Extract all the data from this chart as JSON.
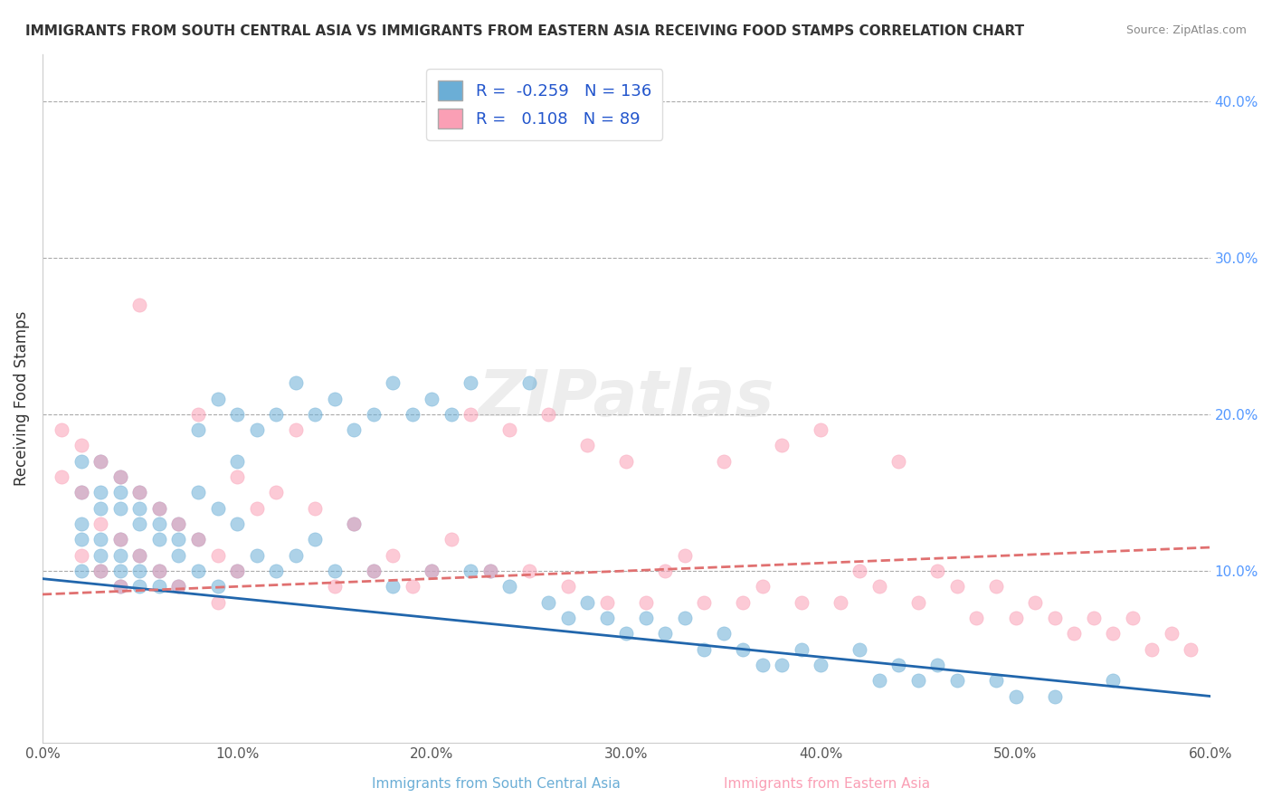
{
  "title": "IMMIGRANTS FROM SOUTH CENTRAL ASIA VS IMMIGRANTS FROM EASTERN ASIA RECEIVING FOOD STAMPS CORRELATION CHART",
  "source": "Source: ZipAtlas.com",
  "xlabel_blue": "Immigrants from South Central Asia",
  "xlabel_pink": "Immigrants from Eastern Asia",
  "ylabel": "Receiving Food Stamps",
  "xlim": [
    0,
    0.6
  ],
  "ylim": [
    -0.01,
    0.43
  ],
  "xticks": [
    0.0,
    0.1,
    0.2,
    0.3,
    0.4,
    0.5,
    0.6
  ],
  "xticklabels": [
    "0.0%",
    "10.0%",
    "20.0%",
    "30.0%",
    "40.0%",
    "50.0%",
    "60.0%"
  ],
  "yticks_right": [
    0.1,
    0.2,
    0.3,
    0.4
  ],
  "yticklabels_right": [
    "10.0%",
    "20.0%",
    "30.0%",
    "40.0%"
  ],
  "blue_color": "#6baed6",
  "pink_color": "#fa9fb5",
  "blue_line_color": "#2166ac",
  "pink_line_color": "#e07070",
  "R_blue": -0.259,
  "N_blue": 136,
  "R_pink": 0.108,
  "N_pink": 89,
  "watermark": "ZIPatlas",
  "blue_scatter_x": [
    0.02,
    0.02,
    0.02,
    0.02,
    0.02,
    0.03,
    0.03,
    0.03,
    0.03,
    0.03,
    0.03,
    0.04,
    0.04,
    0.04,
    0.04,
    0.04,
    0.04,
    0.04,
    0.05,
    0.05,
    0.05,
    0.05,
    0.05,
    0.05,
    0.06,
    0.06,
    0.06,
    0.06,
    0.06,
    0.07,
    0.07,
    0.07,
    0.07,
    0.08,
    0.08,
    0.08,
    0.08,
    0.09,
    0.09,
    0.09,
    0.1,
    0.1,
    0.1,
    0.1,
    0.11,
    0.11,
    0.12,
    0.12,
    0.13,
    0.13,
    0.14,
    0.14,
    0.15,
    0.15,
    0.16,
    0.16,
    0.17,
    0.17,
    0.18,
    0.18,
    0.19,
    0.2,
    0.2,
    0.21,
    0.22,
    0.22,
    0.23,
    0.24,
    0.25,
    0.26,
    0.27,
    0.28,
    0.29,
    0.3,
    0.31,
    0.32,
    0.33,
    0.34,
    0.35,
    0.36,
    0.37,
    0.38,
    0.39,
    0.4,
    0.42,
    0.43,
    0.44,
    0.45,
    0.46,
    0.47,
    0.49,
    0.5,
    0.52,
    0.55
  ],
  "blue_scatter_y": [
    0.17,
    0.15,
    0.13,
    0.12,
    0.1,
    0.17,
    0.15,
    0.14,
    0.12,
    0.11,
    0.1,
    0.16,
    0.15,
    0.14,
    0.12,
    0.11,
    0.1,
    0.09,
    0.15,
    0.14,
    0.13,
    0.11,
    0.1,
    0.09,
    0.14,
    0.13,
    0.12,
    0.1,
    0.09,
    0.13,
    0.12,
    0.11,
    0.09,
    0.19,
    0.15,
    0.12,
    0.1,
    0.21,
    0.14,
    0.09,
    0.2,
    0.17,
    0.13,
    0.1,
    0.19,
    0.11,
    0.2,
    0.1,
    0.22,
    0.11,
    0.2,
    0.12,
    0.21,
    0.1,
    0.19,
    0.13,
    0.2,
    0.1,
    0.22,
    0.09,
    0.2,
    0.21,
    0.1,
    0.2,
    0.1,
    0.22,
    0.1,
    0.09,
    0.22,
    0.08,
    0.07,
    0.08,
    0.07,
    0.06,
    0.07,
    0.06,
    0.07,
    0.05,
    0.06,
    0.05,
    0.04,
    0.04,
    0.05,
    0.04,
    0.05,
    0.03,
    0.04,
    0.03,
    0.04,
    0.03,
    0.03,
    0.02,
    0.02,
    0.03
  ],
  "pink_scatter_x": [
    0.01,
    0.01,
    0.02,
    0.02,
    0.02,
    0.03,
    0.03,
    0.03,
    0.04,
    0.04,
    0.04,
    0.05,
    0.05,
    0.05,
    0.06,
    0.06,
    0.07,
    0.07,
    0.08,
    0.08,
    0.09,
    0.09,
    0.1,
    0.1,
    0.11,
    0.12,
    0.13,
    0.14,
    0.15,
    0.16,
    0.17,
    0.18,
    0.19,
    0.2,
    0.21,
    0.22,
    0.23,
    0.24,
    0.25,
    0.26,
    0.27,
    0.28,
    0.29,
    0.3,
    0.31,
    0.32,
    0.33,
    0.34,
    0.35,
    0.36,
    0.37,
    0.38,
    0.39,
    0.4,
    0.41,
    0.42,
    0.43,
    0.44,
    0.45,
    0.46,
    0.47,
    0.48,
    0.49,
    0.5,
    0.51,
    0.52,
    0.53,
    0.54,
    0.55,
    0.56,
    0.57,
    0.58,
    0.59
  ],
  "pink_scatter_y": [
    0.19,
    0.16,
    0.18,
    0.15,
    0.11,
    0.17,
    0.13,
    0.1,
    0.16,
    0.12,
    0.09,
    0.15,
    0.11,
    0.27,
    0.14,
    0.1,
    0.13,
    0.09,
    0.12,
    0.2,
    0.11,
    0.08,
    0.16,
    0.1,
    0.14,
    0.15,
    0.19,
    0.14,
    0.09,
    0.13,
    0.1,
    0.11,
    0.09,
    0.1,
    0.12,
    0.2,
    0.1,
    0.19,
    0.1,
    0.2,
    0.09,
    0.18,
    0.08,
    0.17,
    0.08,
    0.1,
    0.11,
    0.08,
    0.17,
    0.08,
    0.09,
    0.18,
    0.08,
    0.19,
    0.08,
    0.1,
    0.09,
    0.17,
    0.08,
    0.1,
    0.09,
    0.07,
    0.09,
    0.07,
    0.08,
    0.07,
    0.06,
    0.07,
    0.06,
    0.07,
    0.05,
    0.06,
    0.05
  ]
}
